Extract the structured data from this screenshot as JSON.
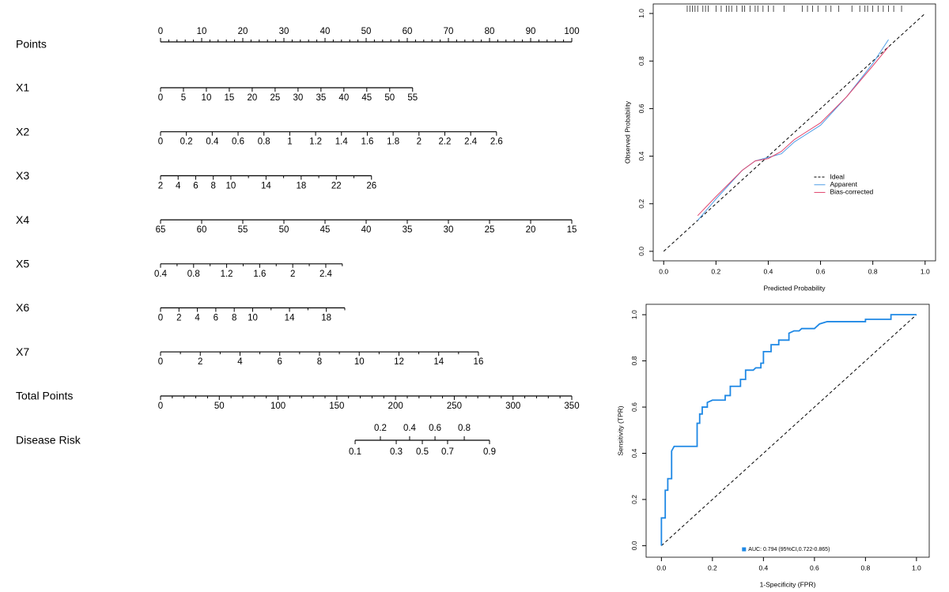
{
  "chart_data": [
    {
      "type": "nomogram",
      "points_axis": {
        "label": "Points",
        "lim": [
          0,
          100
        ],
        "points": [
          0,
          100
        ],
        "ticks": [
          0,
          10,
          20,
          30,
          40,
          50,
          60,
          70,
          80,
          90,
          100
        ],
        "minor_ticks": [
          2,
          4,
          6,
          8,
          12,
          14,
          16,
          18,
          22,
          24,
          26,
          28,
          32,
          34,
          36,
          38,
          42,
          44,
          46,
          48,
          52,
          54,
          56,
          58,
          62,
          64,
          66,
          68,
          72,
          74,
          76,
          78,
          82,
          84,
          86,
          88,
          92,
          94,
          96,
          98
        ]
      },
      "variables": [
        {
          "label": "X1",
          "lim": [
            0,
            55
          ],
          "points": [
            0,
            61.3
          ],
          "ticks": [
            0,
            5,
            10,
            15,
            20,
            25,
            30,
            35,
            40,
            45,
            50,
            55
          ],
          "minor_ticks": []
        },
        {
          "label": "X2",
          "lim": [
            0,
            2.6
          ],
          "points": [
            0,
            81.7
          ],
          "ticks": [
            0,
            0.2,
            0.4,
            0.6,
            0.8,
            1,
            1.2,
            1.4,
            1.6,
            1.8,
            2,
            2.2,
            2.4,
            2.6
          ],
          "minor_ticks": []
        },
        {
          "label": "X3",
          "lim": [
            2,
            26
          ],
          "points": [
            0,
            51.3
          ],
          "ticks": [
            2,
            4,
            6,
            8,
            10,
            14,
            18,
            22,
            26
          ],
          "minor_ticks": [
            12,
            16,
            20,
            24
          ]
        },
        {
          "label": "X4",
          "lim": [
            65,
            15
          ],
          "points": [
            0,
            100
          ],
          "ticks": [
            65,
            60,
            55,
            50,
            45,
            40,
            35,
            30,
            25,
            20,
            15
          ],
          "minor_ticks": []
        },
        {
          "label": "X5",
          "lim": [
            0.4,
            2.6
          ],
          "points": [
            0,
            44.2
          ],
          "ticks": [
            0.4,
            0.8,
            1.2,
            1.6,
            2,
            2.4
          ],
          "minor_ticks": [
            0.6,
            1,
            1.4,
            1.8,
            2.2,
            2.6
          ]
        },
        {
          "label": "X6",
          "lim": [
            0,
            20
          ],
          "points": [
            0,
            44.8
          ],
          "ticks": [
            0,
            2,
            4,
            6,
            8,
            10,
            14,
            18
          ],
          "minor_ticks": [
            12,
            16,
            20
          ]
        },
        {
          "label": "X7",
          "lim": [
            0,
            16
          ],
          "points": [
            0,
            77.3
          ],
          "ticks": [
            0,
            2,
            4,
            6,
            8,
            10,
            12,
            14,
            16
          ],
          "minor_ticks": [
            1,
            3,
            5,
            7,
            9,
            11,
            13,
            15
          ]
        }
      ],
      "total_axis": {
        "label": "Total Points",
        "lim": [
          0,
          350
        ],
        "ticks": [
          0,
          50,
          100,
          150,
          200,
          250,
          300,
          350
        ],
        "minor_ticks": [
          10,
          20,
          30,
          40,
          60,
          70,
          80,
          90,
          110,
          120,
          130,
          140,
          160,
          170,
          180,
          190,
          210,
          220,
          230,
          240,
          260,
          270,
          280,
          290,
          310,
          320,
          330,
          340
        ]
      },
      "risk_axis": {
        "label": "Disease Risk",
        "ticks": [
          0.1,
          0.2,
          0.3,
          0.4,
          0.5,
          0.6,
          0.7,
          0.8,
          0.9
        ],
        "total_points": [
          165.6,
          187.1,
          200.6,
          212,
          222.8,
          233.6,
          244.3,
          258.5,
          280
        ]
      }
    },
    {
      "type": "line",
      "xlabel": "Predicted Probability",
      "ylabel": "Observed Probability",
      "xlim": [
        -0.04,
        1.04
      ],
      "ylim": [
        -0.04,
        1.04
      ],
      "xticks": [
        {
          "value": 0,
          "label": "0.0"
        },
        0.2,
        0.4,
        0.6,
        0.8,
        {
          "value": 1,
          "label": "1.0"
        }
      ],
      "yticks": [
        {
          "value": 0,
          "label": "0.0"
        },
        0.2,
        0.4,
        0.6,
        0.8,
        {
          "value": 1,
          "label": "1.0"
        }
      ],
      "legend": "right",
      "legend_marker": "line",
      "series": [
        {
          "name": "Ideal",
          "color": "#000000",
          "linestyle": "dashed",
          "x": [
            0,
            1
          ],
          "values": [
            0,
            1
          ]
        },
        {
          "name": "Apparent",
          "color": "#4f9de6",
          "linestyle": "solid",
          "x": [
            0.13,
            0.2,
            0.3,
            0.35,
            0.4,
            0.45,
            0.5,
            0.6,
            0.7,
            0.8,
            0.86
          ],
          "values": [
            0.13,
            0.22,
            0.34,
            0.38,
            0.395,
            0.41,
            0.46,
            0.53,
            0.65,
            0.79,
            0.89
          ]
        },
        {
          "name": "Bias-corrected",
          "color": "#e0466e",
          "linestyle": "solid",
          "x": [
            0.13,
            0.2,
            0.3,
            0.35,
            0.4,
            0.45,
            0.5,
            0.6,
            0.7,
            0.8,
            0.86
          ],
          "values": [
            0.15,
            0.23,
            0.34,
            0.38,
            0.39,
            0.42,
            0.47,
            0.54,
            0.65,
            0.78,
            0.86
          ]
        }
      ],
      "rug": [
        0.09,
        0.1,
        0.11,
        0.12,
        0.13,
        0.15,
        0.16,
        0.17,
        0.2,
        0.22,
        0.24,
        0.25,
        0.26,
        0.28,
        0.3,
        0.31,
        0.33,
        0.35,
        0.36,
        0.38,
        0.4,
        0.42,
        0.46,
        0.53,
        0.55,
        0.57,
        0.59,
        0.62,
        0.64,
        0.67,
        0.72,
        0.75,
        0.77,
        0.78,
        0.8,
        0.82,
        0.84,
        0.86,
        0.88,
        0.91
      ]
    },
    {
      "type": "line",
      "xlabel": "1-Specificity (FPR)",
      "ylabel": "Sensitivity (TPR)",
      "xlim": [
        -0.06,
        1.05
      ],
      "ylim": [
        -0.05,
        1.045
      ],
      "xticks": [
        {
          "value": 0,
          "label": "0.0"
        },
        0.2,
        0.4,
        0.6,
        0.8,
        {
          "value": 1,
          "label": "1.0"
        }
      ],
      "yticks": [
        {
          "value": 0,
          "label": "0.0"
        },
        0.2,
        0.4,
        0.6,
        0.8,
        {
          "value": 1,
          "label": "1.0"
        }
      ],
      "legend": "bottom",
      "legend_marker": "square",
      "reference": {
        "color": "#000000",
        "linestyle": "dashed",
        "x": [
          0,
          1
        ],
        "values": [
          0,
          1
        ]
      },
      "series": [
        {
          "name": "AUC: 0.794 (95%CI,0.722-0.865)",
          "color": "#1e88e5",
          "linestyle": "solid",
          "x": [
            0,
            0,
            0.015,
            0.015,
            0.025,
            0.025,
            0.04,
            0.04,
            0.05,
            0.14,
            0.14,
            0.15,
            0.15,
            0.16,
            0.16,
            0.18,
            0.18,
            0.2,
            0.25,
            0.25,
            0.27,
            0.27,
            0.31,
            0.31,
            0.33,
            0.33,
            0.36,
            0.37,
            0.39,
            0.39,
            0.4,
            0.4,
            0.43,
            0.43,
            0.46,
            0.46,
            0.5,
            0.5,
            0.52,
            0.54,
            0.55,
            0.6,
            0.62,
            0.65,
            0.8,
            0.8,
            0.9,
            0.9,
            1
          ],
          "values": [
            0,
            0.12,
            0.12,
            0.24,
            0.24,
            0.29,
            0.29,
            0.41,
            0.43,
            0.43,
            0.53,
            0.53,
            0.57,
            0.57,
            0.6,
            0.6,
            0.62,
            0.63,
            0.63,
            0.65,
            0.65,
            0.69,
            0.69,
            0.72,
            0.72,
            0.76,
            0.76,
            0.77,
            0.77,
            0.79,
            0.79,
            0.84,
            0.84,
            0.87,
            0.87,
            0.89,
            0.89,
            0.92,
            0.93,
            0.93,
            0.94,
            0.94,
            0.96,
            0.97,
            0.97,
            0.98,
            0.98,
            1,
            1
          ]
        }
      ]
    }
  ]
}
